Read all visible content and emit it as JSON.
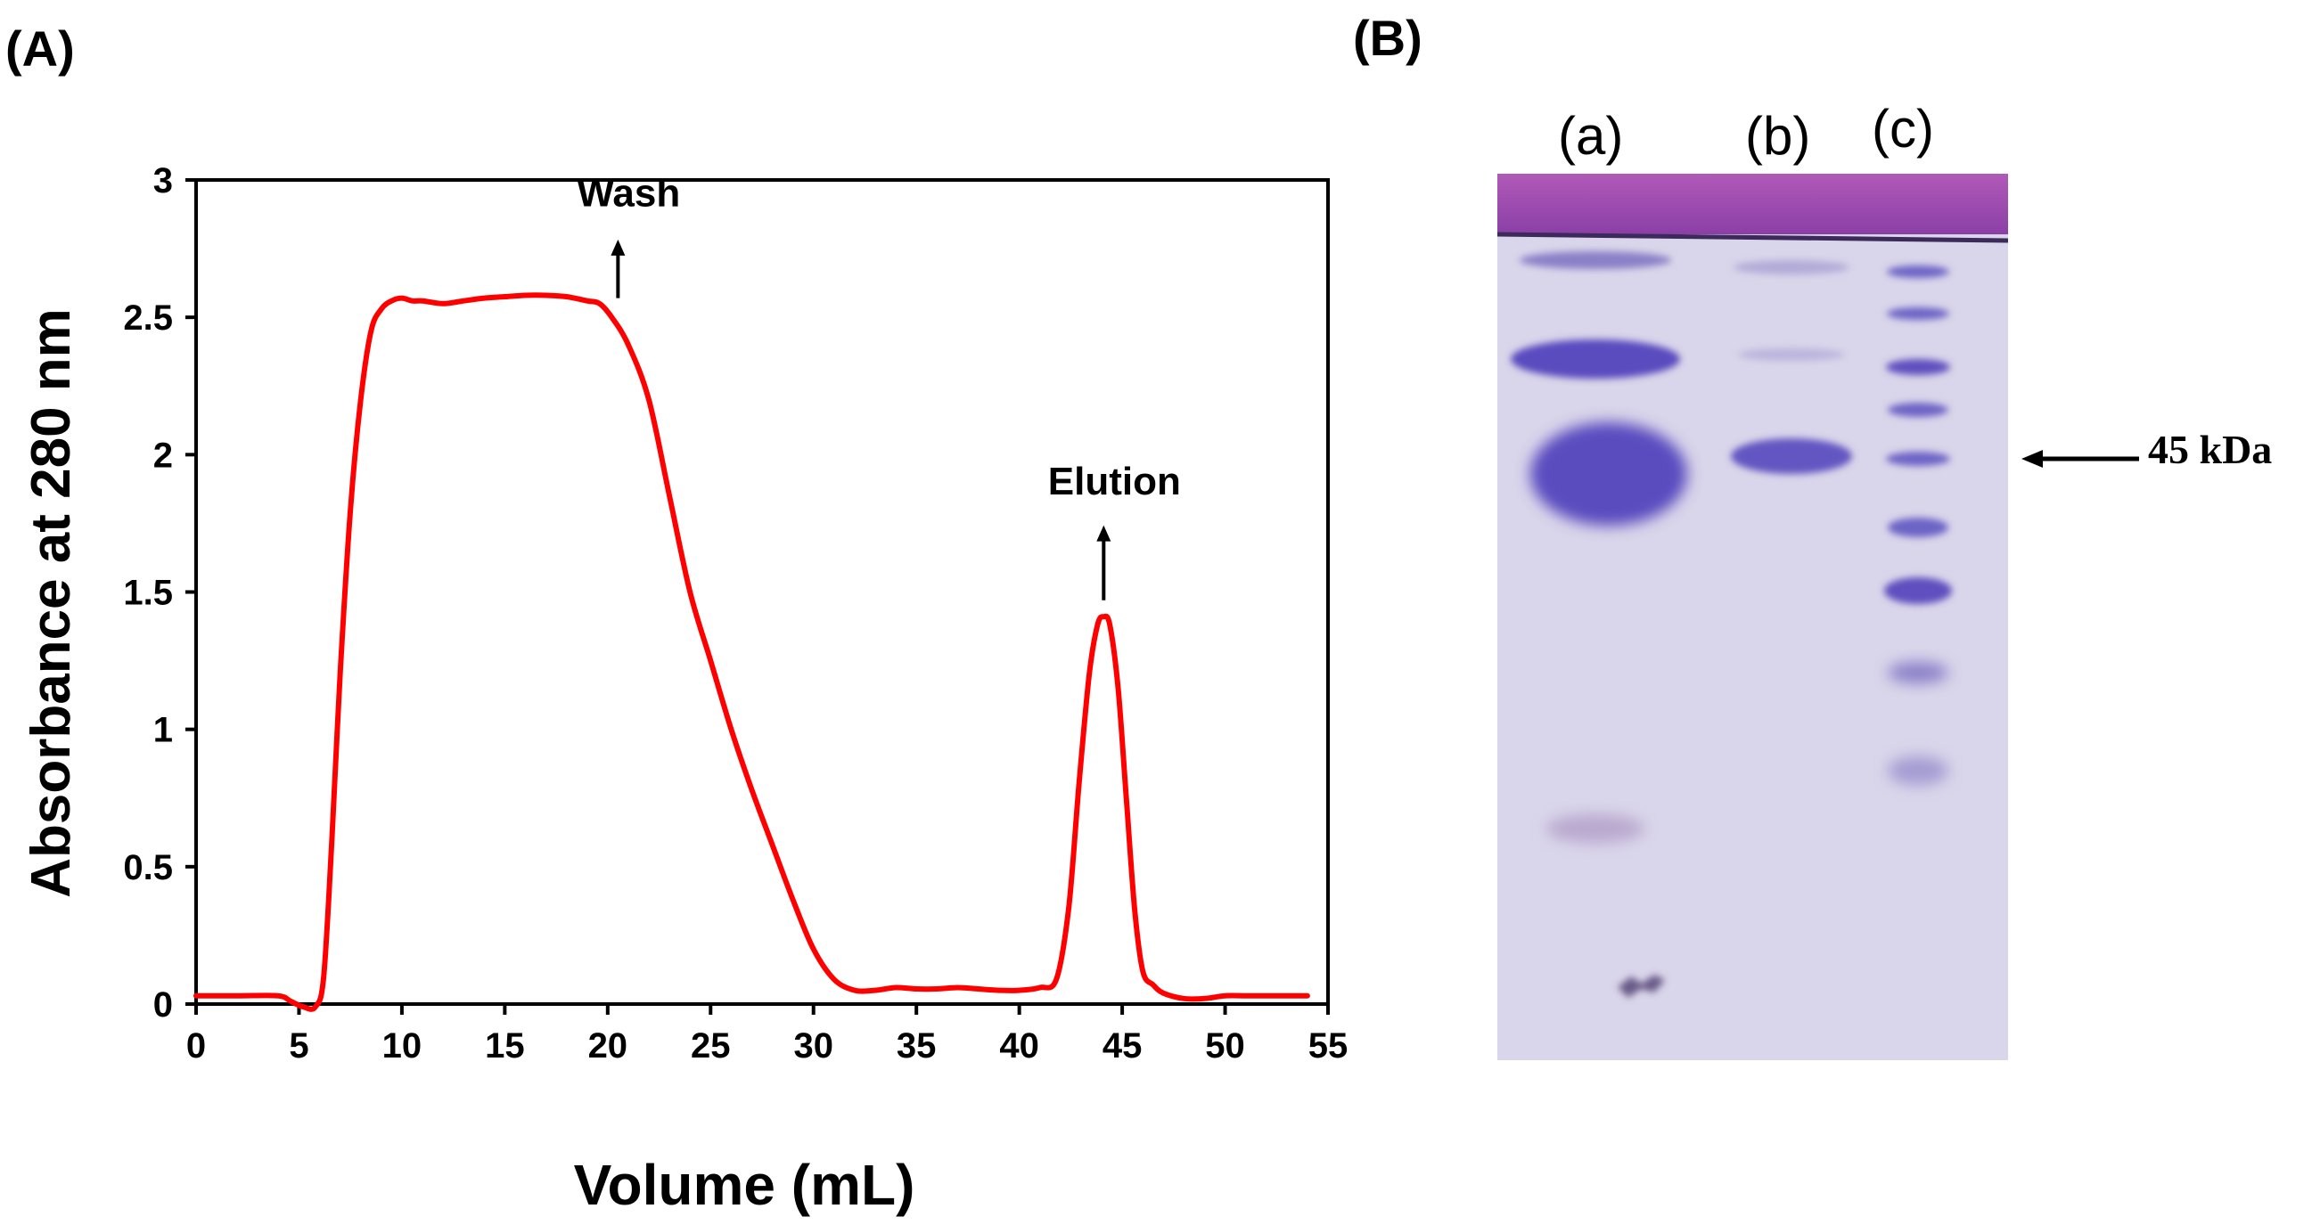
{
  "panels": {
    "a_label": "(A)",
    "b_label": "(B)"
  },
  "chart_data": {
    "type": "line",
    "xlabel": "Volume (mL)",
    "ylabel": "Absorbance at 280 nm",
    "xlim": [
      0,
      55
    ],
    "ylim": [
      0,
      3
    ],
    "xticks": [
      0,
      5,
      10,
      15,
      20,
      25,
      30,
      35,
      40,
      45,
      50,
      55
    ],
    "yticks": [
      0,
      0.5,
      1,
      1.5,
      2,
      2.5,
      3
    ],
    "ytick_labels": [
      "0",
      "0.5",
      "1",
      "1.5",
      "2",
      "2.5",
      "3"
    ],
    "grid": false,
    "line_color": "#ff0000",
    "series": [
      {
        "x": [
          0,
          2,
          4,
          4.6,
          5.2,
          5.8,
          6.2,
          6.6,
          7,
          7.5,
          8,
          8.5,
          9,
          9.5,
          10,
          10.5,
          11,
          12,
          13,
          14,
          15,
          16,
          17,
          18,
          19,
          19.6,
          20.2,
          21,
          22,
          23,
          24,
          25,
          26,
          27,
          28,
          29,
          30,
          31,
          32,
          33,
          34,
          35,
          36,
          37,
          38,
          39,
          40,
          41,
          41.8,
          42.4,
          42.9,
          43.4,
          43.8,
          44.1,
          44.4,
          44.8,
          45.2,
          45.6,
          46,
          46.5,
          47,
          48,
          49,
          50,
          51,
          52,
          53,
          54
        ],
        "y": [
          0.03,
          0.03,
          0.03,
          0.01,
          -0.01,
          -0.01,
          0.1,
          0.6,
          1.2,
          1.8,
          2.2,
          2.45,
          2.53,
          2.56,
          2.57,
          2.56,
          2.56,
          2.55,
          2.56,
          2.57,
          2.575,
          2.58,
          2.58,
          2.575,
          2.56,
          2.55,
          2.5,
          2.4,
          2.2,
          1.85,
          1.5,
          1.25,
          1.0,
          0.78,
          0.58,
          0.38,
          0.2,
          0.09,
          0.05,
          0.05,
          0.06,
          0.055,
          0.055,
          0.06,
          0.055,
          0.05,
          0.05,
          0.06,
          0.09,
          0.35,
          0.8,
          1.2,
          1.38,
          1.41,
          1.38,
          1.15,
          0.75,
          0.35,
          0.12,
          0.07,
          0.04,
          0.02,
          0.02,
          0.03,
          0.03,
          0.03,
          0.03,
          0.03
        ]
      }
    ],
    "annotations": [
      {
        "text": "Wash",
        "x": 20.5,
        "arrow_from_y": 2.57,
        "arrow_to_y": 2.77,
        "text_y": 2.95
      },
      {
        "text": "Elution",
        "x": 44.1,
        "arrow_from_y": 1.47,
        "arrow_to_y": 1.73,
        "text_y": 1.9
      }
    ]
  },
  "gel": {
    "lane_labels": [
      "(a)",
      "(b)",
      "(c)"
    ],
    "marker_label": "45 kDa",
    "colors": {
      "background": "#d7d3e8",
      "top_strip": "#a24fb1",
      "band": "#5e50bf"
    }
  }
}
